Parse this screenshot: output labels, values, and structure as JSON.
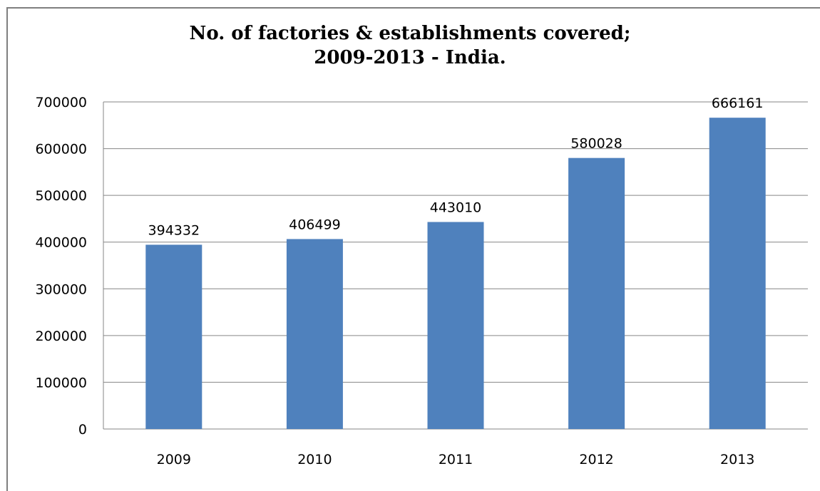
{
  "chart_data": {
    "type": "bar",
    "title_lines": [
      "No. of factories & establishments covered;",
      "2009-2013 - India."
    ],
    "categories": [
      "2009",
      "2010",
      "2011",
      "2012",
      "2013"
    ],
    "values": [
      394332,
      406499,
      443010,
      580028,
      666161
    ],
    "data_labels": [
      "394332",
      "406499",
      "443010",
      "580028",
      "666161"
    ],
    "y_ticks": [
      "0",
      "100000",
      "200000",
      "300000",
      "400000",
      "500000",
      "600000",
      "700000"
    ],
    "ylim": [
      0,
      700000
    ],
    "xlabel": "",
    "ylabel": "",
    "grid": true,
    "legend": "none",
    "bar_color": "#4f81bd",
    "grid_color": "#868686"
  }
}
